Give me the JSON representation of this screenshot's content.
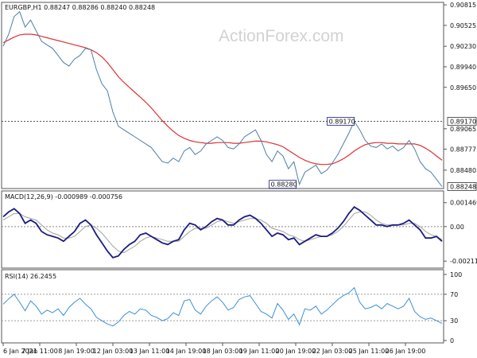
{
  "watermark": "ActionForex.com",
  "chart_data": {
    "type": "line",
    "symbol_header": "EURGBP,H1  0.88247 0.88286 0.88240 0.88248",
    "x_ticks": [
      "6 Jan 2021",
      "7 Jan 11:00",
      "8 Jan 19:00",
      "12 Jan 03:00",
      "13 Jan 11:00",
      "14 Jan 19:00",
      "18 Jan 03:00",
      "19 Jan 11:00",
      "20 Jan 19:00",
      "22 Jan 03:00",
      "25 Jan 11:00",
      "26 Jan 19:00"
    ],
    "price": {
      "ylim": [
        0.8822,
        0.9085
      ],
      "y_ticks": [
        "0.90815",
        "0.90525",
        "0.90230",
        "0.89940",
        "0.89650",
        "0.89065",
        "0.88777",
        "0.88480"
      ],
      "level_labels": [
        {
          "text": "0.89170",
          "value": 0.8917
        },
        {
          "text": "0.88248",
          "value": 0.88248
        }
      ],
      "dotted_level": 0.8917,
      "annotations": [
        {
          "text": "0.89170",
          "x_index": 64,
          "value": 0.8917
        },
        {
          "text": "0.88280",
          "x_index": 54,
          "value": 0.8828
        }
      ],
      "series": [
        {
          "name": "price",
          "color": "#4a7fa6",
          "values": [
            0.9023,
            0.904,
            0.9065,
            0.9072,
            0.905,
            0.906,
            0.9045,
            0.903,
            0.9025,
            0.902,
            0.901,
            0.9,
            0.8995,
            0.9005,
            0.901,
            0.902,
            0.9018,
            0.899,
            0.897,
            0.896,
            0.893,
            0.891,
            0.8905,
            0.89,
            0.8895,
            0.889,
            0.8885,
            0.888,
            0.887,
            0.886,
            0.8858,
            0.8865,
            0.886,
            0.8875,
            0.888,
            0.887,
            0.8875,
            0.8885,
            0.889,
            0.8895,
            0.889,
            0.888,
            0.8878,
            0.8885,
            0.8895,
            0.89,
            0.8905,
            0.889,
            0.887,
            0.886,
            0.8875,
            0.8868,
            0.885,
            0.886,
            0.8828,
            0.8845,
            0.885,
            0.8855,
            0.8843,
            0.8848,
            0.8858,
            0.887,
            0.8885,
            0.89,
            0.8917,
            0.8905,
            0.889,
            0.8882,
            0.888,
            0.8885,
            0.8878,
            0.8882,
            0.8875,
            0.888,
            0.889,
            0.8878,
            0.886,
            0.885,
            0.8845,
            0.8835,
            0.88248
          ]
        },
        {
          "name": "moving average",
          "color": "#e03030",
          "values": [
            0.9028,
            0.9032,
            0.9036,
            0.9039,
            0.904,
            0.904,
            0.9039,
            0.9037,
            0.9035,
            0.9033,
            0.9031,
            0.9029,
            0.9027,
            0.9025,
            0.9023,
            0.9021,
            0.9018,
            0.9014,
            0.9008,
            0.9,
            0.899,
            0.898,
            0.8972,
            0.8965,
            0.8958,
            0.8951,
            0.8944,
            0.8936,
            0.8927,
            0.8918,
            0.891,
            0.8903,
            0.8897,
            0.8893,
            0.889,
            0.8888,
            0.8887,
            0.8886,
            0.8886,
            0.8887,
            0.8887,
            0.8887,
            0.8886,
            0.8886,
            0.8887,
            0.8888,
            0.8889,
            0.8889,
            0.8888,
            0.8886,
            0.8884,
            0.8881,
            0.8876,
            0.8871,
            0.8866,
            0.8862,
            0.8859,
            0.8857,
            0.8856,
            0.8856,
            0.8857,
            0.886,
            0.8864,
            0.8869,
            0.8875,
            0.888,
            0.8884,
            0.8886,
            0.8887,
            0.8887,
            0.8886,
            0.8886,
            0.8885,
            0.8885,
            0.8885,
            0.8885,
            0.8883,
            0.8879,
            0.8874,
            0.8868,
            0.8862
          ]
        }
      ]
    },
    "macd": {
      "title": "MACD(12,26,9) -0.000989 -0.000756",
      "ylim": [
        -0.0024,
        0.0017
      ],
      "y_ticks": [
        "0.001469",
        "0.00",
        "-0.002117"
      ],
      "series": [
        {
          "name": "MACD",
          "color": "#1c1c80",
          "values": [
            0.0006,
            0.0009,
            0.0011,
            0.0008,
            0.0002,
            0.0004,
            0.0002,
            -0.0003,
            -0.0005,
            -0.0006,
            -0.0007,
            -0.0009,
            -0.0006,
            -0.0003,
            0.0002,
            0.0004,
            0.0001,
            -0.0005,
            -0.001,
            -0.0015,
            -0.0019,
            -0.0018,
            -0.0014,
            -0.0011,
            -0.0009,
            -0.0005,
            -0.0004,
            -0.0006,
            -0.0008,
            -0.001,
            -0.0011,
            -0.0009,
            -0.0008,
            -0.0002,
            0.0002,
            0.0001,
            -0.0002,
            0.0,
            0.0003,
            0.0005,
            0.0004,
            0.0001,
            0.0001,
            0.0004,
            0.0006,
            0.0007,
            0.0005,
            0.0002,
            -0.0002,
            -0.0006,
            -0.0004,
            -0.0005,
            -0.0008,
            -0.0007,
            -0.0011,
            -0.0009,
            -0.0007,
            -0.0005,
            -0.0006,
            -0.0006,
            -0.0004,
            -0.0001,
            0.0003,
            0.0008,
            0.0012,
            0.001,
            0.0007,
            0.0004,
            0.0001,
            0.0001,
            0.0,
            0.0001,
            0.0001,
            0.0002,
            0.0004,
            0.0001,
            -0.0002,
            -0.0007,
            -0.0007,
            -0.0006,
            -0.0009
          ]
        },
        {
          "name": "signal",
          "color": "#a0a0a0",
          "values": [
            0.0004,
            0.0006,
            0.0008,
            0.0008,
            0.0006,
            0.0005,
            0.0004,
            0.0001,
            -0.0002,
            -0.0004,
            -0.0005,
            -0.0007,
            -0.0007,
            -0.0006,
            -0.0003,
            0.0,
            0.0001,
            -0.0001,
            -0.0004,
            -0.0008,
            -0.0012,
            -0.0015,
            -0.0016,
            -0.0014,
            -0.0012,
            -0.0009,
            -0.0007,
            -0.0006,
            -0.0007,
            -0.0008,
            -0.0009,
            -0.0009,
            -0.0009,
            -0.0006,
            -0.0003,
            -0.0001,
            -0.0001,
            -0.0001,
            0.0001,
            0.0003,
            0.0004,
            0.0003,
            0.0002,
            0.0003,
            0.0004,
            0.0005,
            0.0005,
            0.0004,
            0.0002,
            -0.0001,
            -0.0002,
            -0.0003,
            -0.0005,
            -0.0006,
            -0.0008,
            -0.0009,
            -0.0008,
            -0.0007,
            -0.0006,
            -0.0006,
            -0.0005,
            -0.0003,
            0.0,
            0.0004,
            0.0008,
            0.0009,
            0.0009,
            0.0007,
            0.0004,
            0.0002,
            0.0001,
            0.0001,
            0.0001,
            0.0001,
            0.0002,
            0.0002,
            0.0,
            -0.0003,
            -0.0005,
            -0.0006,
            -0.0008
          ]
        }
      ]
    },
    "rsi": {
      "title": "RSI(14) 26.2455",
      "ylim": [
        0,
        100
      ],
      "y_ticks": [
        100,
        70,
        30,
        0
      ],
      "levels": [
        70,
        30
      ],
      "series": [
        {
          "name": "RSI",
          "color": "#3a8fd8",
          "values": [
            55,
            63,
            70,
            58,
            45,
            60,
            52,
            40,
            46,
            42,
            48,
            38,
            50,
            58,
            64,
            55,
            48,
            35,
            30,
            25,
            22,
            28,
            38,
            44,
            40,
            48,
            46,
            38,
            35,
            30,
            33,
            42,
            38,
            60,
            62,
            46,
            40,
            52,
            60,
            66,
            58,
            46,
            50,
            62,
            66,
            68,
            56,
            44,
            40,
            34,
            56,
            46,
            32,
            40,
            24,
            48,
            46,
            52,
            40,
            46,
            54,
            62,
            68,
            72,
            80,
            58,
            48,
            50,
            54,
            48,
            56,
            52,
            48,
            52,
            64,
            44,
            36,
            32,
            34,
            30,
            26
          ]
        }
      ]
    }
  }
}
